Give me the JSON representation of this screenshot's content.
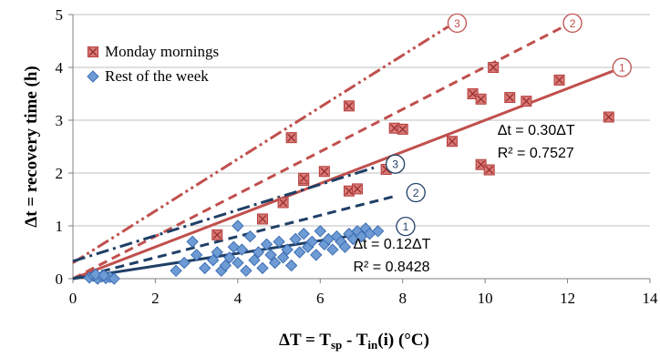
{
  "chart_data": {
    "type": "scatter",
    "xlim": [
      0,
      14
    ],
    "ylim": [
      0,
      5
    ],
    "x_ticks": [
      "0",
      "2",
      "4",
      "6",
      "8",
      "10",
      "12",
      "14"
    ],
    "y_ticks": [
      "0",
      "1",
      "2",
      "3",
      "4",
      "5"
    ],
    "xlabel": {
      "prefix": "ΔT = T",
      "sub1": "sp",
      "mid": " - T",
      "sub2": "in",
      "suffix": "(i) (°C)"
    },
    "ylabel": "Δt = recovery time (h)",
    "grid": "horizontal",
    "legend_position": "top-left",
    "colors": {
      "monday": "#C0504D",
      "week": "#4F81BD",
      "week_dark": "#1F3F66",
      "marker_edge_red": "#B43D3A",
      "marker_edge_blue": "#3C6EB4"
    },
    "series": [
      {
        "name": "Monday mornings",
        "marker": "square-x",
        "points": [
          [
            3.5,
            0.83
          ],
          [
            4.6,
            1.13
          ],
          [
            5.1,
            1.44
          ],
          [
            5.3,
            2.67
          ],
          [
            5.6,
            1.86
          ],
          [
            5.6,
            1.9
          ],
          [
            6.1,
            2.03
          ],
          [
            6.7,
            3.27
          ],
          [
            6.7,
            1.66
          ],
          [
            6.9,
            1.7
          ],
          [
            7.6,
            2.07
          ],
          [
            7.8,
            2.85
          ],
          [
            8.0,
            2.83
          ],
          [
            9.2,
            2.6
          ],
          [
            9.7,
            3.5
          ],
          [
            9.9,
            2.16
          ],
          [
            9.9,
            3.4
          ],
          [
            10.1,
            2.06
          ],
          [
            10.2,
            4.0
          ],
          [
            10.6,
            3.43
          ],
          [
            11.0,
            3.36
          ],
          [
            11.8,
            3.76
          ],
          [
            13.0,
            3.06
          ]
        ]
      },
      {
        "name": "Rest of the week",
        "marker": "diamond",
        "points": [
          [
            0.4,
            0.02
          ],
          [
            0.5,
            0.05
          ],
          [
            0.6,
            0.0
          ],
          [
            0.7,
            0.04
          ],
          [
            0.8,
            0.01
          ],
          [
            0.9,
            0.03
          ],
          [
            1.0,
            0.0
          ],
          [
            0.55,
            0.08
          ],
          [
            0.75,
            0.06
          ],
          [
            2.5,
            0.15
          ],
          [
            2.7,
            0.3
          ],
          [
            2.9,
            0.7
          ],
          [
            3.0,
            0.45
          ],
          [
            3.2,
            0.2
          ],
          [
            3.4,
            0.35
          ],
          [
            3.5,
            0.5
          ],
          [
            3.6,
            0.15
          ],
          [
            3.7,
            0.25
          ],
          [
            3.8,
            0.4
          ],
          [
            3.9,
            0.6
          ],
          [
            4.0,
            0.3
          ],
          [
            4.0,
            1.0
          ],
          [
            4.1,
            0.55
          ],
          [
            4.2,
            0.15
          ],
          [
            4.3,
            0.8
          ],
          [
            4.4,
            0.35
          ],
          [
            4.5,
            0.5
          ],
          [
            4.6,
            0.2
          ],
          [
            4.7,
            0.65
          ],
          [
            4.8,
            0.45
          ],
          [
            4.9,
            0.3
          ],
          [
            5.0,
            0.7
          ],
          [
            5.1,
            0.4
          ],
          [
            5.2,
            0.55
          ],
          [
            5.3,
            0.25
          ],
          [
            5.4,
            0.75
          ],
          [
            5.5,
            0.5
          ],
          [
            5.6,
            0.85
          ],
          [
            5.7,
            0.6
          ],
          [
            5.8,
            0.7
          ],
          [
            5.9,
            0.45
          ],
          [
            6.0,
            0.9
          ],
          [
            6.1,
            0.65
          ],
          [
            6.2,
            0.75
          ],
          [
            6.3,
            0.55
          ],
          [
            6.4,
            0.8
          ],
          [
            6.5,
            0.7
          ],
          [
            6.6,
            0.6
          ],
          [
            6.7,
            0.85
          ],
          [
            6.8,
            0.75
          ],
          [
            6.9,
            0.9
          ],
          [
            7.0,
            0.8
          ],
          [
            7.1,
            0.95
          ],
          [
            7.2,
            0.85
          ],
          [
            7.4,
            0.9
          ]
        ]
      }
    ],
    "lines": [
      {
        "id": "mon-1",
        "color": "#C0504D",
        "style": "solid",
        "x": [
          0,
          13.1
        ],
        "y": [
          0,
          3.93
        ]
      },
      {
        "id": "mon-2",
        "color": "#C0504D",
        "style": "dash",
        "x": [
          0,
          11.9
        ],
        "y": [
          0,
          4.77
        ]
      },
      {
        "id": "mon-3",
        "color": "#C0504D",
        "style": "dashdotdot",
        "x": [
          0,
          9.1
        ],
        "y": [
          0.3,
          4.77
        ]
      },
      {
        "id": "week-1",
        "color": "#1F3F66",
        "style": "solid",
        "x": [
          0,
          7.5
        ],
        "y": [
          0,
          0.9
        ]
      },
      {
        "id": "week-2",
        "color": "#1F3F66",
        "style": "dash",
        "x": [
          0,
          7.8
        ],
        "y": [
          0,
          1.56
        ]
      },
      {
        "id": "week-3",
        "color": "#1F3F66",
        "style": "dashdot",
        "x": [
          0,
          7.3
        ],
        "y": [
          0.33,
          2.1
        ]
      }
    ],
    "line_markers": [
      {
        "label": "1",
        "x": 13.1,
        "y": 3.93,
        "color": "#C0504D"
      },
      {
        "label": "2",
        "x": 11.9,
        "y": 4.77,
        "color": "#C0504D"
      },
      {
        "label": "3",
        "x": 9.1,
        "y": 4.77,
        "color": "#C0504D"
      },
      {
        "label": "1",
        "x": 7.85,
        "y": 0.92,
        "color": "#1F3F66"
      },
      {
        "label": "2",
        "x": 8.1,
        "y": 1.56,
        "color": "#1F3F66"
      },
      {
        "label": "3",
        "x": 7.6,
        "y": 2.1,
        "color": "#1F3F66"
      }
    ],
    "annotations": [
      {
        "line1": "Δt = 0.30ΔT",
        "line2": "R² = 0.7527",
        "x": 10.3,
        "y": 2.72
      },
      {
        "line1": "Δt = 0.12ΔT",
        "line2": "R² = 0.8428",
        "x": 6.8,
        "y": 0.57
      }
    ]
  }
}
